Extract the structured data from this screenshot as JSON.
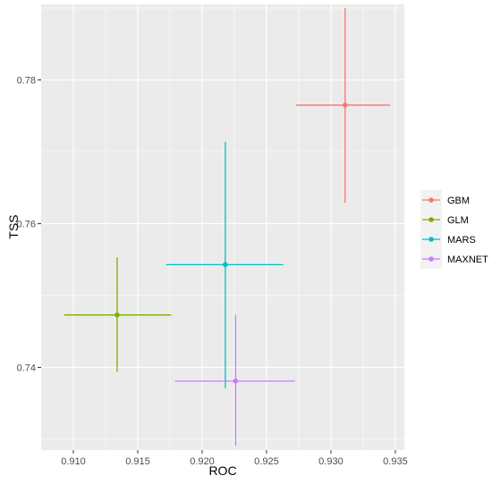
{
  "chart_data": {
    "type": "scatter",
    "xlabel": "ROC",
    "ylabel": "TSS",
    "xlim": [
      0.9075,
      0.9357
    ],
    "ylim": [
      0.7285,
      0.7905
    ],
    "x_ticks": [
      0.91,
      0.915,
      0.92,
      0.925,
      0.93,
      0.935
    ],
    "x_tick_labels": [
      "0.910",
      "0.915",
      "0.920",
      "0.925",
      "0.930",
      "0.935"
    ],
    "y_ticks": [
      0.74,
      0.76,
      0.78
    ],
    "y_tick_labels": [
      "0.74",
      "0.76",
      "0.78"
    ],
    "grid": true,
    "legend_position": "right",
    "series": [
      {
        "name": "GBM",
        "color": "#F8766D",
        "x": 0.9311,
        "y": 0.7765,
        "x_err": [
          0.9273,
          0.9346
        ],
        "y_err": [
          0.7629,
          0.79
        ]
      },
      {
        "name": "GLM",
        "color": "#7CAE00",
        "x": 0.9134,
        "y": 0.7473,
        "x_err": [
          0.9093,
          0.9176
        ],
        "y_err": [
          0.7394,
          0.7553
        ]
      },
      {
        "name": "MARS",
        "color": "#00BFC4",
        "x": 0.9218,
        "y": 0.7543,
        "x_err": [
          0.9172,
          0.9263
        ],
        "y_err": [
          0.7371,
          0.7714
        ]
      },
      {
        "name": "MAXNET",
        "color": "#C77CFF",
        "x": 0.9226,
        "y": 0.7381,
        "x_err": [
          0.9179,
          0.9272
        ],
        "y_err": [
          0.7291,
          0.7473
        ]
      }
    ]
  }
}
